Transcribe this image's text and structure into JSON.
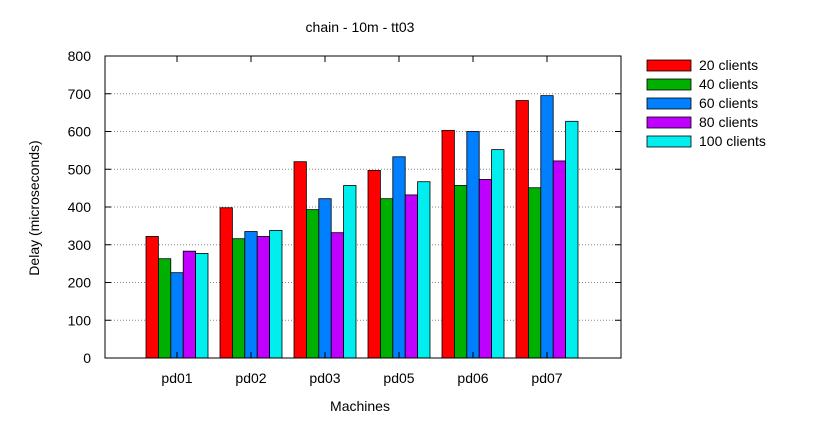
{
  "chart_data": {
    "type": "bar",
    "title": "chain - 10m - tt03",
    "xlabel": "Machines",
    "ylabel": "Delay (microseconds)",
    "ylim": [
      0,
      800
    ],
    "yticks": [
      0,
      100,
      200,
      300,
      400,
      500,
      600,
      700,
      800
    ],
    "grid": true,
    "legend_position": "outside-right",
    "categories": [
      "pd01",
      "pd02",
      "pd03",
      "pd05",
      "pd06",
      "pd07"
    ],
    "series": [
      {
        "name": "20 clients",
        "color": "#ff0000",
        "values": [
          322,
          398,
          520,
          497,
          603,
          682
        ]
      },
      {
        "name": "40 clients",
        "color": "#00b000",
        "values": [
          263,
          316,
          393,
          422,
          457,
          451
        ]
      },
      {
        "name": "60 clients",
        "color": "#0080ff",
        "values": [
          226,
          335,
          422,
          533,
          600,
          695
        ]
      },
      {
        "name": "80 clients",
        "color": "#c000ff",
        "values": [
          283,
          322,
          332,
          432,
          473,
          522
        ]
      },
      {
        "name": "100 clients",
        "color": "#00eeee",
        "values": [
          277,
          338,
          457,
          467,
          552,
          627
        ]
      }
    ]
  }
}
